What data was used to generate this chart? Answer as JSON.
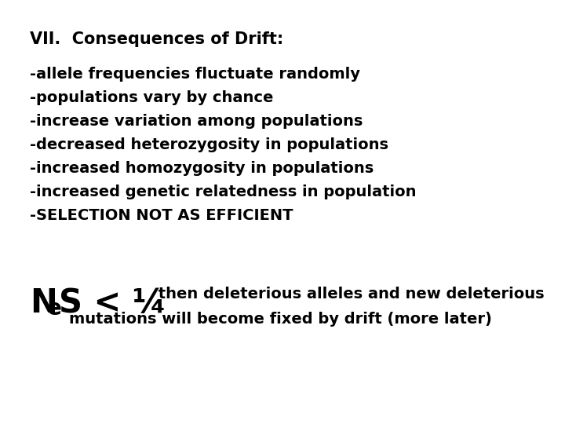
{
  "background_color": "#ffffff",
  "title_text": "VII.  Consequences of Drift:",
  "title_fontsize": 15,
  "title_fontweight": "bold",
  "bullet_lines": [
    "-allele frequencies fluctuate randomly",
    "-populations vary by chance",
    "-increase variation among populations",
    "-decreased heterozygosity in populations",
    "-increased homozygosity in populations",
    "-increased genetic relatedness in population",
    "-SELECTION NOT AS EFFICIENT"
  ],
  "bullet_fontsize": 14,
  "bullet_fontweight": "bold",
  "nes_large_fontsize": 30,
  "nes_sub_fontsize": 20,
  "nes_s_fontsize": 30,
  "then_fontsize": 14,
  "then_fontweight": "bold",
  "mutations_fontsize": 14,
  "mutations_fontweight": "bold",
  "text_color": "#000000"
}
